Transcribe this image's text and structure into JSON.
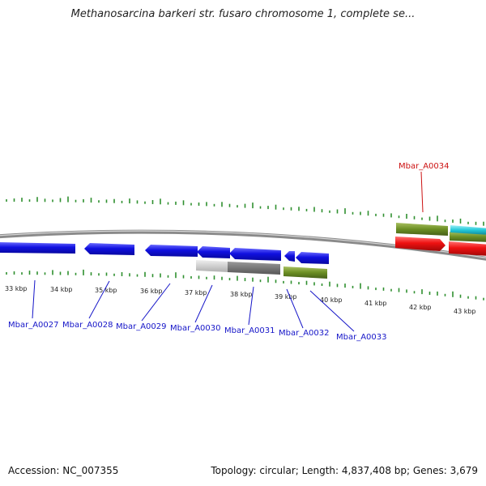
{
  "title": "Methanosarcina barkeri str. fusaro chromosome 1, complete se...",
  "footer": {
    "accession": "Accession: NC_007355",
    "summary": "Topology: circular; Length: 4,837,408 bp; Genes: 3,679"
  },
  "scale_labels": [
    "33 kbp",
    "34 kbp",
    "35 kbp",
    "36 kbp",
    "37 kbp",
    "38 kbp",
    "39 kbp",
    "40 kbp",
    "41 kbp",
    "42 kbp",
    "43 kbp"
  ],
  "genes": [
    {
      "name": "Mbar_A0027",
      "color": "#1010e0"
    },
    {
      "name": "Mbar_A0028",
      "color": "#1010e0"
    },
    {
      "name": "Mbar_A0029",
      "color": "#1010e0"
    },
    {
      "name": "Mbar_A0030",
      "color": "#1010e0"
    },
    {
      "name": "Mbar_A0031",
      "color": "#1010e0"
    },
    {
      "name": "Mbar_A0032",
      "color": "#1010e0"
    },
    {
      "name": "Mbar_A0033",
      "color": "#1010e0"
    },
    {
      "name": "Mbar_A0034",
      "color": "#cc1111"
    }
  ],
  "colors": {
    "cds_reverse": "#1010e0",
    "cds_forward_red": "#ee1111",
    "gc_green": "#6b8e23",
    "cyan": "#22c8d8",
    "gray_light": "#c0c0c0",
    "gray_dark": "#6e6e6e",
    "tick_green": "#2f8f2f",
    "backbone": "#8a8a8a"
  }
}
